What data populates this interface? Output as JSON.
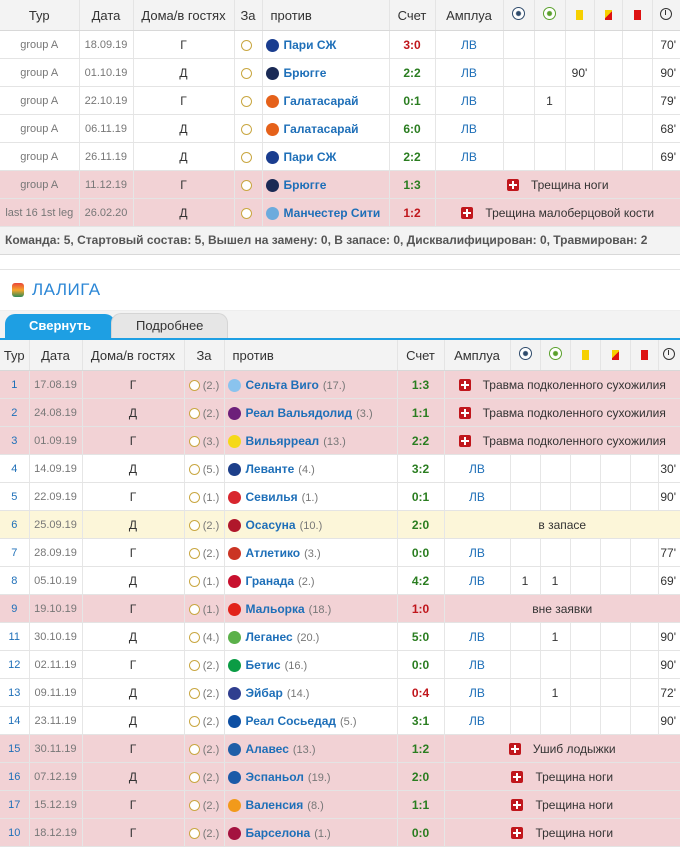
{
  "header": {
    "round": "Тур",
    "date": "Дата",
    "home_away": "Дома/в гостях",
    "for": "За",
    "vs": "против",
    "score": "Счет",
    "role": "Амплуа"
  },
  "icons": {
    "goal": "ball-icon",
    "assist": "assist-icon",
    "yellow": "yellow-card-icon",
    "second_yellow": "second-yellow-icon",
    "red": "red-card-icon",
    "minutes": "clock-icon",
    "injury": "medical-cross-icon"
  },
  "cl": {
    "rows": [
      {
        "round": "group A",
        "date": "18.09.19",
        "ha": "Г",
        "opp": "Пари СЖ",
        "score": "3:0",
        "pos": "ЛВ",
        "min": "70'",
        "color": "#1a3d8f"
      },
      {
        "round": "group A",
        "date": "01.10.19",
        "ha": "Д",
        "opp": "Брюгге",
        "score": "2:2",
        "pos": "ЛВ",
        "cr": "90'",
        "min": "90'",
        "color": "#1a2a55"
      },
      {
        "round": "group A",
        "date": "22.10.19",
        "ha": "Г",
        "opp": "Галатасарай",
        "score": "0:1",
        "pos": "ЛВ",
        "assist": "1",
        "min": "79'",
        "color": "#e5611a"
      },
      {
        "round": "group A",
        "date": "06.11.19",
        "ha": "Д",
        "opp": "Галатасарай",
        "score": "6:0",
        "pos": "ЛВ",
        "min": "68'",
        "color": "#e5611a"
      },
      {
        "round": "group A",
        "date": "26.11.19",
        "ha": "Д",
        "opp": "Пари СЖ",
        "score": "2:2",
        "pos": "ЛВ",
        "min": "69'",
        "color": "#1a3d8f"
      },
      {
        "round": "group A",
        "date": "11.12.19",
        "ha": "Г",
        "opp": "Брюгге",
        "score": "1:3",
        "note": "Трещина ноги",
        "color": "#1a2a55",
        "type": "inj"
      },
      {
        "round": "last 16 1st leg",
        "date": "26.02.20",
        "ha": "Д",
        "opp": "Манчестер Сити",
        "score": "1:2",
        "note": "Трещина малоберцовой кости",
        "color": "#6cabdd",
        "type": "inj"
      }
    ],
    "summary": "Команда: 5, Стартовый состав: 5, Вышел на замену: 0, В запасе: 0, Дисквалифицирован: 0, Травмирован: 2"
  },
  "league": {
    "title": "ЛАЛИГА",
    "tab_collapse": "Свернуть",
    "tab_detail": "Подробнее"
  },
  "liga": {
    "rows": [
      {
        "round": "1",
        "date": "17.08.19",
        "ha": "Г",
        "tp": "(2.)",
        "opp": "Сельта Виго",
        "rank": "(17.)",
        "score": "1:3",
        "note": "Травма подколенного сухожилия",
        "type": "inj",
        "color": "#8ac3ee"
      },
      {
        "round": "2",
        "date": "24.08.19",
        "ha": "Д",
        "tp": "(2.)",
        "opp": "Реал Вальядолид",
        "rank": "(3.)",
        "score": "1:1",
        "note": "Травма подколенного сухожилия",
        "type": "inj",
        "color": "#6d1f7a"
      },
      {
        "round": "3",
        "date": "01.09.19",
        "ha": "Г",
        "tp": "(3.)",
        "opp": "Вильярреал",
        "rank": "(13.)",
        "score": "2:2",
        "note": "Травма подколенного сухожилия",
        "type": "inj",
        "color": "#f5d918"
      },
      {
        "round": "4",
        "date": "14.09.19",
        "ha": "Д",
        "tp": "(5.)",
        "opp": "Леванте",
        "rank": "(4.)",
        "score": "3:2",
        "pos": "ЛВ",
        "min": "30'",
        "color": "#1d3f8a"
      },
      {
        "round": "5",
        "date": "22.09.19",
        "ha": "Г",
        "tp": "(1.)",
        "opp": "Севилья",
        "rank": "(1.)",
        "score": "0:1",
        "pos": "ЛВ",
        "min": "90'",
        "color": "#d8262e"
      },
      {
        "round": "6",
        "date": "25.09.19",
        "ha": "Д",
        "tp": "(2.)",
        "opp": "Осасуна",
        "rank": "(10.)",
        "score": "2:0",
        "note": "в запасе",
        "type": "res",
        "color": "#b0172b"
      },
      {
        "round": "7",
        "date": "28.09.19",
        "ha": "Г",
        "tp": "(2.)",
        "opp": "Атлетико",
        "rank": "(3.)",
        "score": "0:0",
        "pos": "ЛВ",
        "min": "77'",
        "color": "#cb3524"
      },
      {
        "round": "8",
        "date": "05.10.19",
        "ha": "Д",
        "tp": "(1.)",
        "opp": "Гранада",
        "rank": "(2.)",
        "score": "4:2",
        "pos": "ЛВ",
        "goal": "1",
        "assist": "1",
        "min": "69'",
        "color": "#c8102e"
      },
      {
        "round": "9",
        "date": "19.10.19",
        "ha": "Г",
        "tp": "(1.)",
        "opp": "Мальорка",
        "rank": "(18.)",
        "score": "1:0",
        "note": "вне заявки",
        "type": "inj",
        "color": "#e2231a"
      },
      {
        "round": "11",
        "date": "30.10.19",
        "ha": "Д",
        "tp": "(4.)",
        "opp": "Леганес",
        "rank": "(20.)",
        "score": "5:0",
        "pos": "ЛВ",
        "assist": "1",
        "min": "90'",
        "color": "#5bb14a"
      },
      {
        "round": "12",
        "date": "02.11.19",
        "ha": "Г",
        "tp": "(2.)",
        "opp": "Бетис",
        "rank": "(16.)",
        "score": "0:0",
        "pos": "ЛВ",
        "min": "90'",
        "color": "#0b9c45"
      },
      {
        "round": "13",
        "date": "09.11.19",
        "ha": "Д",
        "tp": "(2.)",
        "opp": "Эйбар",
        "rank": "(14.)",
        "score": "0:4",
        "pos": "ЛВ",
        "assist": "1",
        "min": "72'",
        "color": "#2f3e8f"
      },
      {
        "round": "14",
        "date": "23.11.19",
        "ha": "Д",
        "tp": "(2.)",
        "opp": "Реал Сосьедад",
        "rank": "(5.)",
        "score": "3:1",
        "pos": "ЛВ",
        "min": "90'",
        "color": "#0d4fa3"
      },
      {
        "round": "15",
        "date": "30.11.19",
        "ha": "Г",
        "tp": "(2.)",
        "opp": "Алавес",
        "rank": "(13.)",
        "score": "1:2",
        "note": "Ушиб лодыжки",
        "type": "inj",
        "color": "#1f5fa8"
      },
      {
        "round": "16",
        "date": "07.12.19",
        "ha": "Д",
        "tp": "(2.)",
        "opp": "Эспаньол",
        "rank": "(19.)",
        "score": "2:0",
        "note": "Трещина ноги",
        "type": "inj",
        "color": "#1b5aa8"
      },
      {
        "round": "17",
        "date": "15.12.19",
        "ha": "Г",
        "tp": "(2.)",
        "opp": "Валенсия",
        "rank": "(8.)",
        "score": "1:1",
        "note": "Трещина ноги",
        "type": "inj",
        "color": "#f29a1b"
      },
      {
        "round": "10",
        "date": "18.12.19",
        "ha": "Г",
        "tp": "(2.)",
        "opp": "Барселона",
        "rank": "(1.)",
        "score": "0:0",
        "note": "Трещина ноги",
        "type": "inj",
        "color": "#a4123f"
      }
    ]
  }
}
